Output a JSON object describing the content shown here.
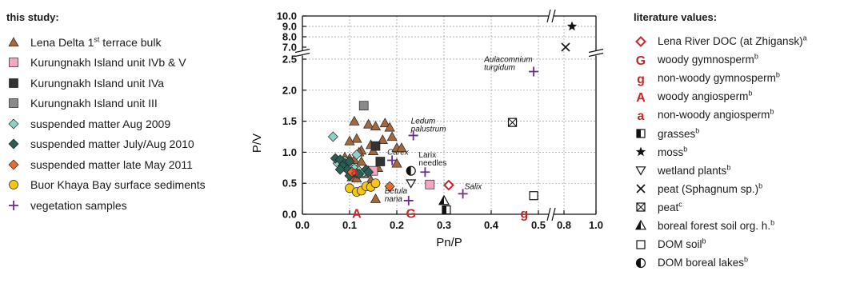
{
  "left_legend": {
    "title": "this study:",
    "items": [
      {
        "label": "Lena Delta 1",
        "sup": "st",
        "label_after": " terrace bulk",
        "symbol": "triangle",
        "fill": "#a5683a"
      },
      {
        "label": "Kurungnakh Island unit IVb & V",
        "symbol": "square",
        "fill": "#f4a5c4"
      },
      {
        "label": "Kurungnakh Island unit IVa",
        "symbol": "square",
        "fill": "#333333"
      },
      {
        "label": "Kurungnakh Island unit III",
        "symbol": "square",
        "fill": "#8a8a8a"
      },
      {
        "label": "suspended matter Aug 2009",
        "symbol": "diamond",
        "fill": "#8fd1c6"
      },
      {
        "label": "suspended matter July/Aug 2010",
        "symbol": "diamond",
        "fill": "#2b5f55"
      },
      {
        "label": "suspended matter late May 2011",
        "symbol": "diamond",
        "fill": "#ef6a30"
      },
      {
        "label": "Buor Khaya Bay surface sediments",
        "symbol": "circle",
        "fill": "#f6c515"
      },
      {
        "label": "vegetation samples",
        "symbol": "plus",
        "fill": "#6a2d8a"
      }
    ]
  },
  "right_legend": {
    "title": "literature values:",
    "items": [
      {
        "label": "Lena River DOC (at Zhigansk)",
        "sup": "a",
        "symbol": "diamond-open",
        "color": "#c0282d"
      },
      {
        "label": "woody gymnosperm",
        "sup": "b",
        "symbol": "letter-G",
        "color": "#c0282d"
      },
      {
        "label": "non-woody gymnosperm",
        "sup": "b",
        "symbol": "letter-g",
        "color": "#c0282d"
      },
      {
        "label": "woody angiosperm",
        "sup": "b",
        "symbol": "letter-A",
        "color": "#c0282d"
      },
      {
        "label": "non-woody angiosperm",
        "sup": "b",
        "symbol": "letter-a",
        "color": "#c0282d"
      },
      {
        "label": "grasses",
        "sup": "b",
        "symbol": "half-square",
        "color": "#111111"
      },
      {
        "label": "moss",
        "sup": "b",
        "symbol": "star",
        "color": "#111111"
      },
      {
        "label": "wetland plants",
        "sup": "b",
        "symbol": "triangle-down-open",
        "color": "#111111"
      },
      {
        "label": "peat (Sphagnum sp.)",
        "sup": "b",
        "symbol": "cross",
        "color": "#111111"
      },
      {
        "label": "peat",
        "sup": "c",
        "symbol": "square-x",
        "color": "#111111"
      },
      {
        "label": "boreal forest soil org. h.",
        "sup": "b",
        "symbol": "half-triangle",
        "color": "#111111"
      },
      {
        "label": "DOM soil",
        "sup": "b",
        "symbol": "square-open",
        "color": "#111111"
      },
      {
        "label": "DOM boreal lakes",
        "sup": "b",
        "symbol": "half-circle",
        "color": "#111111"
      }
    ]
  },
  "chart_data": {
    "type": "scatter",
    "xlabel": "Pn/P",
    "ylabel": "P/V",
    "xlim": [
      0,
      1.0
    ],
    "x_break": [
      0.5,
      0.8
    ],
    "ylim_lower": [
      0,
      2.5
    ],
    "ylim_upper": [
      7.0,
      10.0
    ],
    "x_ticks": [
      "0.0",
      "0.1",
      "0.2",
      "0.3",
      "0.4",
      "0.5",
      "0.8",
      "1.0"
    ],
    "y_ticks_lower": [
      "0.0",
      "0.5",
      "1.0",
      "1.5",
      "2.0",
      "2.5"
    ],
    "y_ticks_upper": [
      "7.0",
      "8.0",
      "9.0",
      "10.0"
    ],
    "grid": true,
    "series": [
      {
        "name": "Lena Delta 1st terrace bulk",
        "marker": "triangle",
        "fill": "#a5683a",
        "points": [
          [
            0.11,
            1.5
          ],
          [
            0.14,
            1.45
          ],
          [
            0.155,
            1.42
          ],
          [
            0.175,
            1.47
          ],
          [
            0.185,
            1.4
          ],
          [
            0.17,
            1.2
          ],
          [
            0.19,
            1.25
          ],
          [
            0.115,
            1.22
          ],
          [
            0.1,
            1.18
          ],
          [
            0.2,
            1.07
          ],
          [
            0.21,
            1.07
          ],
          [
            0.145,
            1.12
          ],
          [
            0.15,
            1.02
          ],
          [
            0.125,
            1.03
          ],
          [
            0.12,
            1.0
          ],
          [
            0.09,
            0.92
          ],
          [
            0.1,
            0.9
          ],
          [
            0.11,
            0.88
          ],
          [
            0.125,
            0.85
          ],
          [
            0.16,
            0.75
          ],
          [
            0.14,
            0.7
          ],
          [
            0.2,
            0.82
          ],
          [
            0.13,
            0.65
          ],
          [
            0.145,
            0.55
          ],
          [
            0.105,
            0.6
          ],
          [
            0.115,
            0.58
          ],
          [
            0.1,
            0.75
          ],
          [
            0.155,
            0.25
          ]
        ]
      },
      {
        "name": "Kurungnakh Island unit IVb & V",
        "marker": "square",
        "fill": "#f4a5c4",
        "points": [
          [
            0.15,
            0.7
          ],
          [
            0.27,
            0.48
          ]
        ]
      },
      {
        "name": "Kurungnakh Island unit IVa",
        "marker": "square",
        "fill": "#333333",
        "points": [
          [
            0.155,
            1.1
          ],
          [
            0.165,
            0.85
          ]
        ]
      },
      {
        "name": "Kurungnakh Island unit III",
        "marker": "square",
        "fill": "#8a8a8a",
        "points": [
          [
            0.13,
            1.75
          ]
        ]
      },
      {
        "name": "suspended matter Aug 2009",
        "marker": "diamond",
        "fill": "#8fd1c6",
        "points": [
          [
            0.065,
            1.25
          ],
          [
            0.115,
            0.96
          ],
          [
            0.09,
            0.86
          ],
          [
            0.1,
            0.76
          ],
          [
            0.11,
            0.74
          ],
          [
            0.12,
            0.7
          ],
          [
            0.13,
            0.68
          ],
          [
            0.075,
            0.82
          ]
        ]
      },
      {
        "name": "suspended matter July/Aug 2010",
        "marker": "diamond",
        "fill": "#2b5f55",
        "points": [
          [
            0.07,
            0.9
          ],
          [
            0.08,
            0.88
          ],
          [
            0.09,
            0.82
          ],
          [
            0.1,
            0.85
          ],
          [
            0.085,
            0.78
          ],
          [
            0.095,
            0.72
          ],
          [
            0.105,
            0.68
          ],
          [
            0.115,
            0.66
          ],
          [
            0.1,
            0.62
          ],
          [
            0.12,
            0.65
          ],
          [
            0.135,
            0.72
          ],
          [
            0.14,
            0.68
          ],
          [
            0.08,
            0.72
          ]
        ]
      },
      {
        "name": "suspended matter late May 2011",
        "marker": "diamond",
        "fill": "#ef6a30",
        "points": [
          [
            0.105,
            0.68
          ],
          [
            0.185,
            0.45
          ]
        ]
      },
      {
        "name": "Buor Khaya Bay surface sediments",
        "marker": "circle",
        "fill": "#f6c515",
        "points": [
          [
            0.1,
            0.42
          ],
          [
            0.115,
            0.36
          ],
          [
            0.125,
            0.38
          ],
          [
            0.135,
            0.45
          ],
          [
            0.145,
            0.44
          ],
          [
            0.155,
            0.5
          ]
        ]
      },
      {
        "name": "vegetation samples",
        "marker": "plus",
        "fill": "#6a2d8a",
        "points": [
          [
            0.49,
            2.3
          ],
          [
            0.235,
            1.27
          ],
          [
            0.19,
            0.87
          ],
          [
            0.26,
            0.68
          ],
          [
            0.34,
            0.33
          ],
          [
            0.225,
            0.22
          ]
        ]
      },
      {
        "name": "Lena River DOC (at Zhigansk)",
        "marker": "diamond-open",
        "fill": "#c0282d",
        "points": [
          [
            0.31,
            0.47
          ]
        ]
      },
      {
        "name": "woody gymnosperm",
        "marker": "letter-G",
        "fill": "#c0282d",
        "points": [
          [
            0.23,
            0.02
          ]
        ]
      },
      {
        "name": "non-woody gymnosperm",
        "marker": "letter-g",
        "fill": "#c0282d",
        "points": [
          [
            0.47,
            0.02
          ]
        ]
      },
      {
        "name": "woody angiosperm",
        "marker": "letter-A",
        "fill": "#c0282d",
        "points": [
          [
            0.115,
            0.02
          ]
        ]
      },
      {
        "name": "non-woody angiosperm",
        "marker": "letter-a",
        "fill": "#c0282d",
        "points": [
          [
            0.11,
            0.7
          ]
        ]
      },
      {
        "name": "grasses",
        "marker": "half-square",
        "fill": "#111111",
        "points": [
          [
            0.305,
            0.07
          ]
        ]
      },
      {
        "name": "moss",
        "marker": "star",
        "fill": "#111111",
        "points": [
          [
            0.85,
            9.0
          ]
        ]
      },
      {
        "name": "wetland plants",
        "marker": "triangle-down-open",
        "fill": "#111111",
        "points": [
          [
            0.23,
            0.5
          ]
        ]
      },
      {
        "name": "peat (Sphagnum sp.)",
        "marker": "cross",
        "fill": "#111111",
        "points": [
          [
            0.81,
            7.0
          ]
        ]
      },
      {
        "name": "peat",
        "marker": "square-x",
        "fill": "#111111",
        "points": [
          [
            0.445,
            1.48
          ]
        ]
      },
      {
        "name": "boreal forest soil org. h.",
        "marker": "half-triangle",
        "fill": "#111111",
        "points": [
          [
            0.3,
            0.22
          ]
        ]
      },
      {
        "name": "DOM soil",
        "marker": "square-open",
        "fill": "#111111",
        "points": [
          [
            0.49,
            0.3
          ]
        ]
      },
      {
        "name": "DOM boreal lakes",
        "marker": "half-circle",
        "fill": "#111111",
        "points": [
          [
            0.23,
            0.7
          ]
        ]
      }
    ],
    "annotations": [
      {
        "text": "Aulacomnium",
        "text2": "turgidum",
        "x": 0.49,
        "y": 2.3
      },
      {
        "text": "Ledum",
        "text2": "palustrum",
        "x": 0.235,
        "y": 1.27
      },
      {
        "text": "Carex",
        "x": 0.19,
        "y": 0.87
      },
      {
        "text": "Larix",
        "text2": "needles",
        "x": 0.26,
        "y": 0.68
      },
      {
        "text": "Salix",
        "x": 0.34,
        "y": 0.33
      },
      {
        "text": "Betula",
        "text2": "nana",
        "x": 0.225,
        "y": 0.22
      }
    ]
  }
}
